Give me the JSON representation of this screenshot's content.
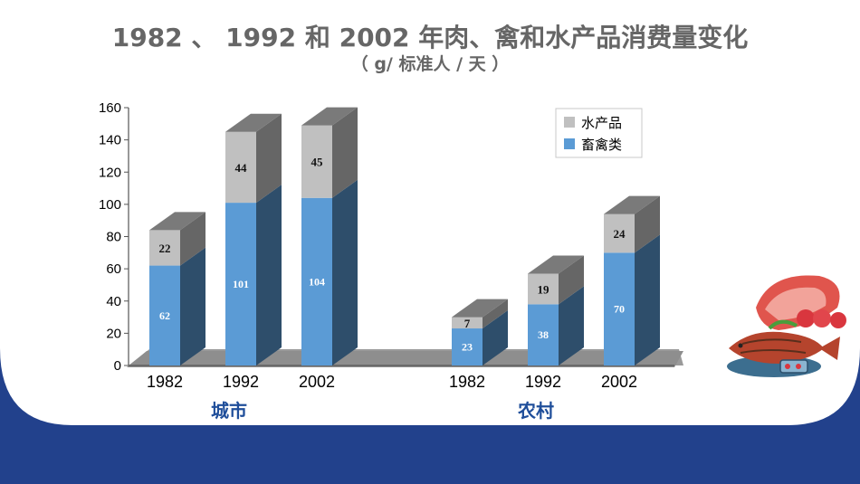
{
  "page": {
    "title": "1982 、 1992  和 2002 年肉、禽和水产品消费量变化",
    "subtitle": "（ g/ 标准人 / 天 ）"
  },
  "colors": {
    "poultry": "#5b9bd5",
    "aquatic": "#c0c0c0",
    "band": "#22418c"
  },
  "chart_data": {
    "type": "bar",
    "stacked": true,
    "three_d": true,
    "ylim": [
      0,
      160
    ],
    "yticks": [
      0,
      20,
      40,
      60,
      80,
      100,
      120,
      140,
      160
    ],
    "groups": [
      {
        "label": "城市",
        "categories": [
          "1982",
          "1992",
          "2002"
        ]
      },
      {
        "label": "农村",
        "categories": [
          "1982",
          "1992",
          "2002"
        ]
      }
    ],
    "series": [
      {
        "name": "畜禽类",
        "values": [
          62,
          101,
          104,
          23,
          38,
          70
        ]
      },
      {
        "name": "水产品",
        "values": [
          22,
          44,
          45,
          7,
          19,
          24
        ]
      }
    ],
    "legend": {
      "position": "top-right",
      "items": [
        "水产品",
        "畜禽类"
      ]
    },
    "grid": false
  },
  "decor": {
    "image_icon": "meat-fish-illustration-icon"
  }
}
